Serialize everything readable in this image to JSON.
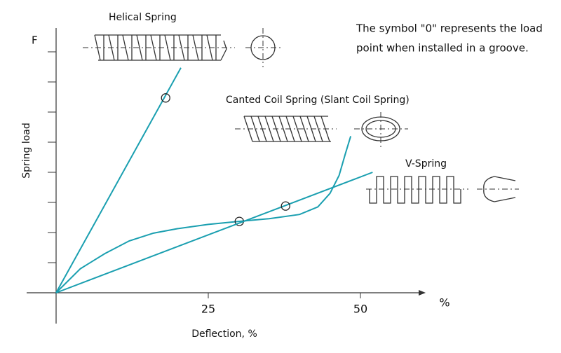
{
  "chart_data": {
    "type": "line",
    "y_symbol": "F",
    "ylabel": "Spring load",
    "xlabel": "Deflection, %",
    "x_unit": "%",
    "annotation": [
      "The symbol \"0\" represents the load",
      "point when installed in a groove."
    ],
    "xlim": [
      0,
      60
    ],
    "xticks": [
      25,
      50
    ],
    "ylim": [
      0,
      8.8
    ],
    "yticks": [
      1,
      2,
      3,
      4,
      5,
      6,
      7,
      8
    ],
    "ytick_labels": false,
    "series": [
      {
        "name": "Helical Spring",
        "color": "#1a9fb0",
        "x": [
          0,
          20.5
        ],
        "values": [
          0,
          7.47
        ],
        "markers": {
          "x": [
            18
          ],
          "values": [
            6.47
          ]
        }
      },
      {
        "name": "Canted Coil Spring (Slant Coil Spring)",
        "color": "#1a9fb0",
        "x": [
          0,
          4,
          8,
          12,
          16,
          20,
          25,
          30,
          35,
          40,
          43,
          45,
          46.5,
          47.5,
          48.4
        ],
        "values": [
          0,
          0.8,
          1.3,
          1.72,
          1.98,
          2.13,
          2.27,
          2.37,
          2.46,
          2.6,
          2.85,
          3.3,
          3.9,
          4.6,
          5.2
        ],
        "markers": {
          "x": [
            30.1
          ],
          "values": [
            2.37
          ]
        }
      },
      {
        "name": "V-Spring",
        "color": "#1a9fb0",
        "x": [
          0,
          52
        ],
        "values": [
          0,
          4.0
        ],
        "markers": {
          "x": [
            37.7
          ],
          "values": [
            2.88
          ]
        }
      }
    ]
  }
}
